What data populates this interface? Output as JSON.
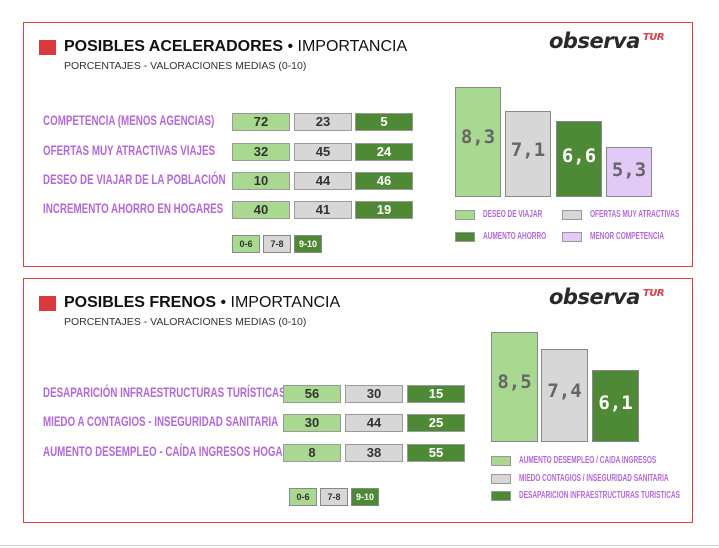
{
  "colors": {
    "low": "#a9d891",
    "mid": "#d7d7d7",
    "high": "#4e8a35",
    "lavender": "#e3c9f5",
    "label": "#b468e0",
    "border": "#e0403f"
  },
  "logo": {
    "main": "observa",
    "suffix": "TUR"
  },
  "keys": [
    "0-6",
    "7-8",
    "9-10"
  ],
  "chart_data": [
    {
      "type": "table+bar",
      "title_bold": "POSIBLES ACELERADORES",
      "title_sep": "•",
      "title_rest": "IMPORTANCIA",
      "subtitle": "PORCENTAJES - VALORACIONES MEDIAS (0-10)",
      "table": {
        "columns": [
          "0-6",
          "7-8",
          "9-10"
        ],
        "rows": [
          {
            "label": "COMPETENCIA (MENOS AGENCIAS)",
            "values": [
              72,
              23,
              5
            ]
          },
          {
            "label": "OFERTAS MUY ATRACTIVAS VIAJES",
            "values": [
              32,
              45,
              24
            ]
          },
          {
            "label": "DESEO DE VIAJAR DE LA POBLACIÓN",
            "values": [
              10,
              44,
              46
            ]
          },
          {
            "label": "INCREMENTO AHORRO EN HOGARES",
            "values": [
              40,
              41,
              19
            ]
          }
        ]
      },
      "bars": [
        {
          "name": "DESEO DE VIAJAR",
          "value": 8.3,
          "display": "8,3",
          "color": "low"
        },
        {
          "name": "OFERTAS MUY ATRACTIVAS",
          "value": 7.1,
          "display": "7,1",
          "color": "mid"
        },
        {
          "name": "AUMENTO AHORRO",
          "value": 6.6,
          "display": "6,6",
          "color": "high"
        },
        {
          "name": "MENOR COMPETENCIA",
          "value": 5.3,
          "display": "5,3",
          "color": "lavender"
        }
      ]
    },
    {
      "type": "table+bar",
      "title_bold": "POSIBLES FRENOS",
      "title_sep": "•",
      "title_rest": "IMPORTANCIA",
      "subtitle": "PORCENTAJES - VALORACIONES MEDIAS (0-10)",
      "table": {
        "columns": [
          "0-6",
          "7-8",
          "9-10"
        ],
        "rows": [
          {
            "label": "DESAPARICIÓN INFRAESTRUCTURAS TURÍSTICAS",
            "values": [
              56,
              30,
              15
            ]
          },
          {
            "label": "MIEDO A CONTAGIOS - INSEGURIDAD SANITARIA",
            "values": [
              30,
              44,
              25
            ]
          },
          {
            "label": "AUMENTO DESEMPLEO - CAÍDA INGRESOS HOGARES",
            "values": [
              8,
              38,
              55
            ]
          }
        ]
      },
      "bars": [
        {
          "name": "AUMENTO DESEMPLEO / CAIDA INGRESOS",
          "value": 8.5,
          "display": "8,5",
          "color": "low"
        },
        {
          "name": "MIEDO CONTAGIOS / INSEGURIDAD SANITARIA",
          "value": 7.4,
          "display": "7,4",
          "color": "mid"
        },
        {
          "name": "DESAPARICION INFRAESTRUCTURAS TURISTICAS",
          "value": 6.1,
          "display": "6,1",
          "color": "high"
        }
      ]
    }
  ]
}
